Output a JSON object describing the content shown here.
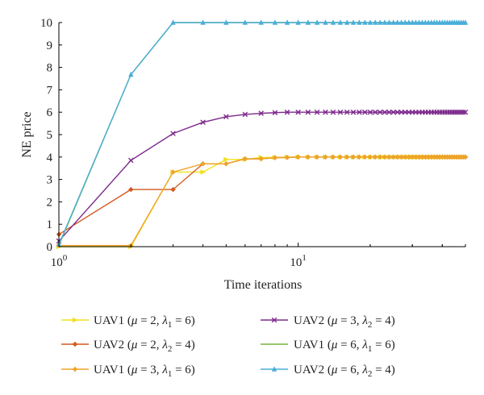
{
  "chart_data": {
    "type": "line",
    "xscale": "log",
    "xlabel": "Time iterations",
    "ylabel": "NE price",
    "xlim": [
      1,
      50
    ],
    "ylim": [
      0,
      10
    ],
    "x_tick_labels": [
      {
        "value": 1,
        "base": "10",
        "exp": "0"
      },
      {
        "value": 10,
        "base": "10",
        "exp": "1"
      }
    ],
    "y_ticks": [
      0,
      1,
      2,
      3,
      4,
      5,
      6,
      7,
      8,
      9,
      10
    ],
    "grid": false,
    "legend_position": "bottom",
    "series": [
      {
        "name": "UAV1 (μ = 2, λ1 = 6)",
        "label": {
          "pre": "UAV1 (",
          "sym": "μ",
          "mid": " = 2, ",
          "lam": "λ",
          "sub": "1",
          "post": " = 6)"
        },
        "color": "#f2e01a",
        "marker": "triangle-right",
        "x": [
          1,
          2,
          3,
          4,
          5,
          6,
          7,
          8,
          9,
          10,
          11,
          12,
          13,
          14,
          15,
          16,
          17,
          18,
          19,
          20,
          21,
          22,
          23,
          24,
          25,
          26,
          27,
          28,
          29,
          30,
          31,
          32,
          33,
          34,
          35,
          36,
          37,
          38,
          39,
          40,
          41,
          42,
          43,
          44,
          45,
          46,
          47,
          48,
          49,
          50
        ],
        "y": [
          0,
          0,
          3.33,
          3.33,
          3.89,
          3.89,
          3.98,
          3.98,
          4,
          4,
          4,
          4,
          4,
          4,
          4,
          4,
          4,
          4,
          4,
          4,
          4,
          4,
          4,
          4,
          4,
          4,
          4,
          4,
          4,
          4,
          4,
          4,
          4,
          4,
          4,
          4,
          4,
          4,
          4,
          4,
          4,
          4,
          4,
          4,
          4,
          4,
          4,
          4,
          4,
          4
        ]
      },
      {
        "name": "UAV2 (μ = 2, λ2 = 4)",
        "label": {
          "pre": "UAV2 (",
          "sym": "μ",
          "mid": " = 2, ",
          "lam": "λ",
          "sub": "2",
          "post": " = 4)"
        },
        "color": "#d4581e",
        "marker": "diamond",
        "x": [
          1,
          2,
          3,
          4,
          5,
          6,
          7,
          8,
          9,
          10,
          11,
          12,
          13,
          14,
          15,
          16,
          17,
          18,
          19,
          20,
          21,
          22,
          23,
          24,
          25,
          26,
          27,
          28,
          29,
          30,
          31,
          32,
          33,
          34,
          35,
          36,
          37,
          38,
          39,
          40,
          41,
          42,
          43,
          44,
          45,
          46,
          47,
          48,
          49,
          50
        ],
        "y": [
          0.55,
          2.55,
          2.55,
          3.7,
          3.7,
          3.92,
          3.92,
          3.97,
          3.98,
          4,
          4,
          4,
          4,
          4,
          4,
          4,
          4,
          4,
          4,
          4,
          4,
          4,
          4,
          4,
          4,
          4,
          4,
          4,
          4,
          4,
          4,
          4,
          4,
          4,
          4,
          4,
          4,
          4,
          4,
          4,
          4,
          4,
          4,
          4,
          4,
          4,
          4,
          4,
          4,
          4
        ]
      },
      {
        "name": "UAV1 (μ = 3, λ1 = 6)",
        "label": {
          "pre": "UAV1 (",
          "sym": "μ",
          "mid": " = 3, ",
          "lam": "λ",
          "sub": "1",
          "post": " = 6)"
        },
        "color": "#eea428",
        "marker": "diamond",
        "x": [
          1,
          2,
          3,
          4,
          5,
          6,
          7,
          8,
          9,
          10,
          11,
          12,
          13,
          14,
          15,
          16,
          17,
          18,
          19,
          20,
          21,
          22,
          23,
          24,
          25,
          26,
          27,
          28,
          29,
          30,
          31,
          32,
          33,
          34,
          35,
          36,
          37,
          38,
          39,
          40,
          41,
          42,
          43,
          44,
          45,
          46,
          47,
          48,
          49,
          50
        ],
        "y": [
          0.05,
          0.05,
          3.33,
          3.7,
          3.7,
          3.92,
          3.92,
          3.97,
          3.98,
          4,
          4,
          4,
          4,
          4,
          4,
          4,
          4,
          4,
          4,
          4,
          4,
          4,
          4,
          4,
          4,
          4,
          4,
          4,
          4,
          4,
          4,
          4,
          4,
          4,
          4,
          4,
          4,
          4,
          4,
          4,
          4,
          4,
          4,
          4,
          4,
          4,
          4,
          4,
          4,
          4
        ]
      },
      {
        "name": "UAV2 (μ = 3, λ2 = 4)",
        "label": {
          "pre": "UAV2 (",
          "sym": "μ",
          "mid": " = 3, ",
          "lam": "λ",
          "sub": "2",
          "post": " = 4)"
        },
        "color": "#7d2a8c",
        "marker": "x",
        "x": [
          1,
          2,
          3,
          4,
          5,
          6,
          7,
          8,
          9,
          10,
          11,
          12,
          13,
          14,
          15,
          16,
          17,
          18,
          19,
          20,
          21,
          22,
          23,
          24,
          25,
          26,
          27,
          28,
          29,
          30,
          31,
          32,
          33,
          34,
          35,
          36,
          37,
          38,
          39,
          40,
          41,
          42,
          43,
          44,
          45,
          46,
          47,
          48,
          49,
          50
        ],
        "y": [
          0.25,
          3.85,
          5.05,
          5.55,
          5.8,
          5.9,
          5.95,
          5.98,
          6,
          6,
          6,
          6,
          6,
          6,
          6,
          6,
          6,
          6,
          6,
          6,
          6,
          6,
          6,
          6,
          6,
          6,
          6,
          6,
          6,
          6,
          6,
          6,
          6,
          6,
          6,
          6,
          6,
          6,
          6,
          6,
          6,
          6,
          6,
          6,
          6,
          6,
          6,
          6,
          6,
          6
        ]
      },
      {
        "name": "UAV1 (μ = 6, λ1 = 6)",
        "label": {
          "pre": "UAV1 (",
          "sym": "μ",
          "mid": " = 6, ",
          "lam": "λ",
          "sub": "1",
          "post": " = 6)"
        },
        "color": "#7ab33e",
        "marker": "none",
        "x": [
          1,
          2,
          3,
          4,
          5,
          6,
          7,
          8,
          9,
          10,
          11,
          12,
          13,
          14,
          15,
          16,
          17,
          18,
          19,
          20,
          21,
          22,
          23,
          24,
          25,
          26,
          27,
          28,
          29,
          30,
          31,
          32,
          33,
          34,
          35,
          36,
          37,
          38,
          39,
          40,
          41,
          42,
          43,
          44,
          45,
          46,
          47,
          48,
          49,
          50
        ],
        "y": [
          0.05,
          7.68,
          10,
          10,
          10,
          10,
          10,
          10,
          10,
          10,
          10,
          10,
          10,
          10,
          10,
          10,
          10,
          10,
          10,
          10,
          10,
          10,
          10,
          10,
          10,
          10,
          10,
          10,
          10,
          10,
          10,
          10,
          10,
          10,
          10,
          10,
          10,
          10,
          10,
          10,
          10,
          10,
          10,
          10,
          10,
          10,
          10,
          10,
          10,
          10
        ]
      },
      {
        "name": "UAV2 (μ = 6, λ2 = 4)",
        "label": {
          "pre": "UAV2 (",
          "sym": "μ",
          "mid": " = 6, ",
          "lam": "λ",
          "sub": "2",
          "post": " = 4)"
        },
        "color": "#4aaed8",
        "marker": "triangle-up",
        "x": [
          1,
          2,
          3,
          4,
          5,
          6,
          7,
          8,
          9,
          10,
          11,
          12,
          13,
          14,
          15,
          16,
          17,
          18,
          19,
          20,
          21,
          22,
          23,
          24,
          25,
          26,
          27,
          28,
          29,
          30,
          31,
          32,
          33,
          34,
          35,
          36,
          37,
          38,
          39,
          40,
          41,
          42,
          43,
          44,
          45,
          46,
          47,
          48,
          49,
          50
        ],
        "y": [
          0.1,
          7.68,
          10,
          10,
          10,
          10,
          10,
          10,
          10,
          10,
          10,
          10,
          10,
          10,
          10,
          10,
          10,
          10,
          10,
          10,
          10,
          10,
          10,
          10,
          10,
          10,
          10,
          10,
          10,
          10,
          10,
          10,
          10,
          10,
          10,
          10,
          10,
          10,
          10,
          10,
          10,
          10,
          10,
          10,
          10,
          10,
          10,
          10,
          10,
          10
        ]
      }
    ]
  }
}
